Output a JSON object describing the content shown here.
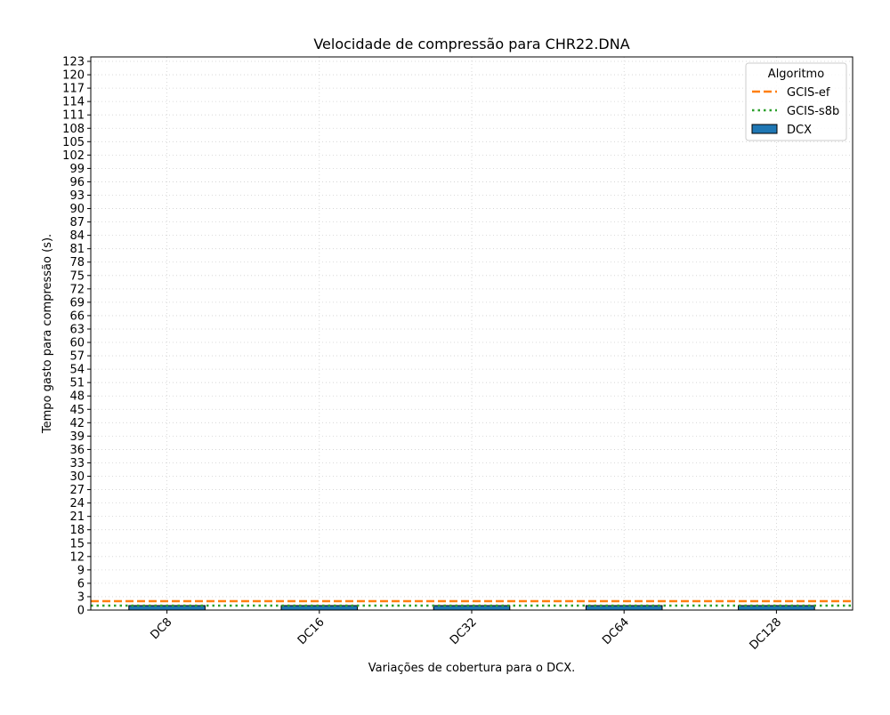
{
  "chart_data": {
    "type": "bar",
    "title": "Velocidade de compressão para  CHR22.DNA",
    "xlabel": "Variações de cobertura para o DCX.",
    "ylabel": "Tempo gasto para compressão (s).",
    "categories": [
      "DC8",
      "DC16",
      "DC32",
      "DC64",
      "DC128"
    ],
    "ylim": [
      0,
      124
    ],
    "y_ticks": [
      0,
      3,
      6,
      9,
      12,
      15,
      18,
      21,
      24,
      27,
      30,
      33,
      36,
      39,
      42,
      45,
      48,
      51,
      54,
      57,
      60,
      63,
      66,
      69,
      72,
      75,
      78,
      81,
      84,
      87,
      90,
      93,
      96,
      99,
      102,
      105,
      108,
      111,
      114,
      117,
      120,
      123
    ],
    "grid": true,
    "legend": {
      "title": "Algoritmo",
      "placement": "top-right"
    },
    "series": [
      {
        "name": "DCX",
        "kind": "bar",
        "values": [
          1.0,
          1.0,
          1.0,
          1.0,
          1.0
        ],
        "color": "#1f77b4"
      }
    ],
    "reference_lines": [
      {
        "name": "GCIS-ef",
        "value": 2.0,
        "color": "#ff7f0e",
        "style": "dashed"
      },
      {
        "name": "GCIS-s8b",
        "value": 1.0,
        "color": "#2ca02c",
        "style": "dotted"
      }
    ]
  }
}
